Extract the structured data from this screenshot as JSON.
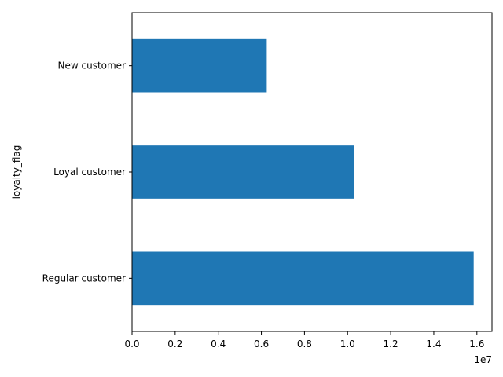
{
  "chart_data": {
    "type": "bar",
    "orientation": "horizontal",
    "categories": [
      "Regular customer",
      "Loyal customer",
      "New customer"
    ],
    "values": [
      15850000,
      10300000,
      6250000
    ],
    "ylabel": "loyalty_flag",
    "xlabel": "",
    "xlim": [
      0,
      16700000
    ],
    "x_ticks": [
      0,
      2000000,
      4000000,
      6000000,
      8000000,
      10000000,
      12000000,
      14000000,
      16000000
    ],
    "x_tick_labels": [
      "0.0",
      "0.2",
      "0.4",
      "0.6",
      "0.8",
      "1.0",
      "1.2",
      "1.4",
      "1.6"
    ],
    "x_offset_label": "1e7",
    "bar_color": "#1f77b4",
    "grid": false,
    "legend": "none"
  }
}
